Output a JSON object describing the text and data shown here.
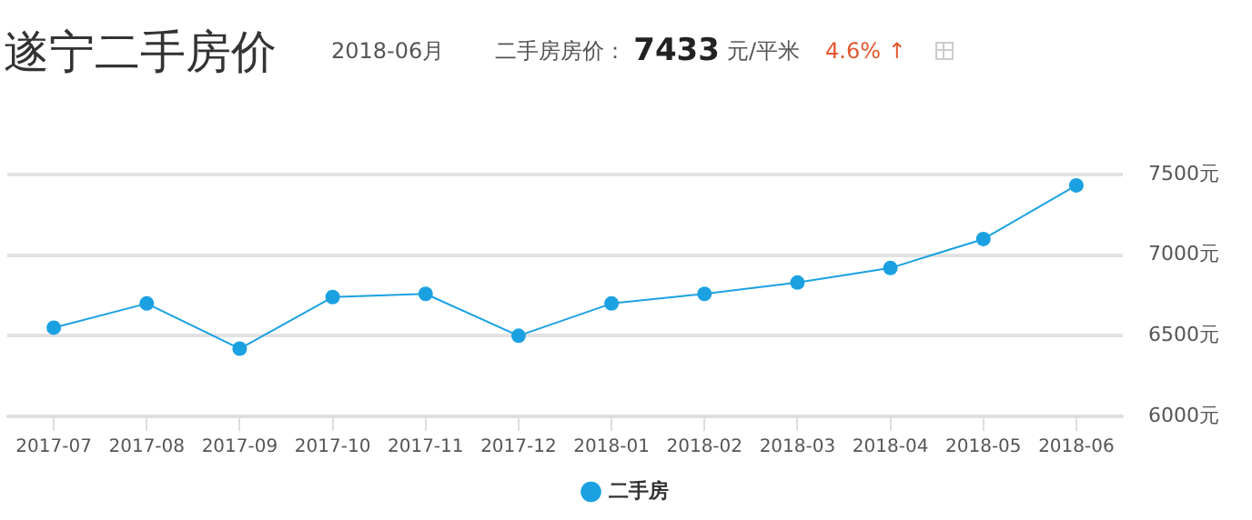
{
  "chart_data": {
    "type": "line",
    "title": "遂宁二手房价",
    "annotations": [
      "2018-06月",
      "二手房房价：",
      "7433",
      "元/平米",
      "4.6% ↑"
    ],
    "categories": [
      "2017-07",
      "2017-08",
      "2017-09",
      "2017-10",
      "2017-11",
      "2017-12",
      "2018-01",
      "2018-02",
      "2018-03",
      "2018-04",
      "2018-05",
      "2018-06"
    ],
    "series": [
      {
        "name": "二手房",
        "color": "#1ba1e2",
        "values": [
          6550,
          6700,
          6420,
          6740,
          6760,
          6500,
          6700,
          6760,
          6830,
          6920,
          7100,
          7433
        ]
      }
    ],
    "ylim": [
      6000,
      7500
    ],
    "yticks": [
      {
        "value": 6000,
        "label": "6000元"
      },
      {
        "value": 6500,
        "label": "6500元"
      },
      {
        "value": 7000,
        "label": "7000元"
      },
      {
        "value": 7500,
        "label": "7500元"
      }
    ],
    "grid": "y",
    "legend": "bottom",
    "marker": "circle",
    "line_style": "solid"
  }
}
